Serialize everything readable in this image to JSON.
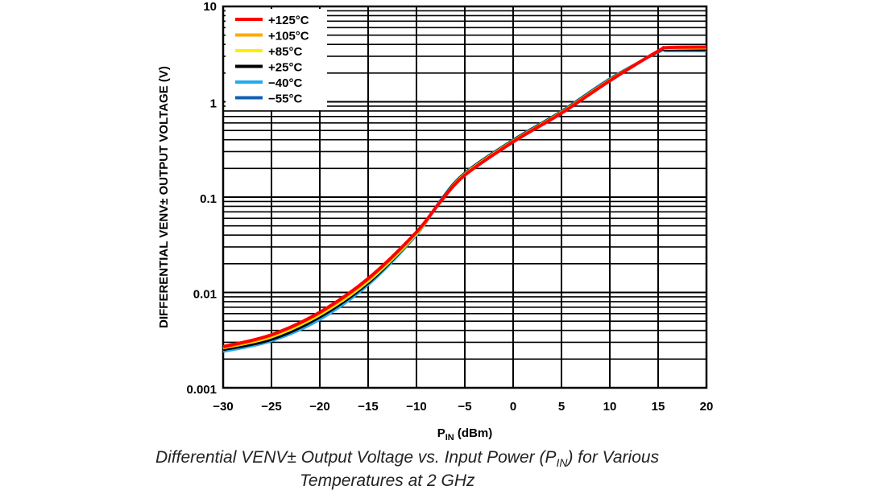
{
  "chart_data": {
    "type": "line",
    "title": "",
    "xlabel": "P",
    "xlabel_sub": "IN",
    "xlabel_unit": " (dBm)",
    "ylabel": "DIFFERENTIAL VENV± OUTPUT VOLTAGE (V)",
    "xlim": [
      -30,
      20
    ],
    "ylim": [
      0.001,
      10
    ],
    "yscale": "log",
    "grid": true,
    "legend_position": "top-left",
    "xticks": [
      "−30",
      "−25",
      "−20",
      "−15",
      "−10",
      "−5",
      "0",
      "5",
      "10",
      "15",
      "20"
    ],
    "yticks": [
      "0.001",
      "0.01",
      "0.1",
      "1",
      "10"
    ],
    "x": [
      -30,
      -25,
      -20,
      -15,
      -10,
      -7.5,
      -5,
      0,
      5,
      10,
      15,
      16,
      20
    ],
    "series": [
      {
        "name": "+125°C",
        "color": "#ff0000",
        "values": [
          0.0027,
          0.0036,
          0.0062,
          0.014,
          0.043,
          0.09,
          0.17,
          0.38,
          0.76,
          1.66,
          3.4,
          3.7,
          3.75
        ]
      },
      {
        "name": "+105°C",
        "color": "#ffaa00",
        "values": [
          0.0026,
          0.0035,
          0.006,
          0.0135,
          0.042,
          0.09,
          0.172,
          0.385,
          0.77,
          1.68,
          3.4,
          3.65,
          3.7
        ]
      },
      {
        "name": "+85°C",
        "color": "#ffee00",
        "values": [
          0.0026,
          0.0034,
          0.0058,
          0.013,
          0.041,
          0.091,
          0.175,
          0.39,
          0.78,
          1.7,
          3.4,
          3.6,
          3.65
        ]
      },
      {
        "name": "+25°C",
        "color": "#000000",
        "values": [
          0.0025,
          0.0032,
          0.0055,
          0.0125,
          0.041,
          0.092,
          0.178,
          0.395,
          0.79,
          1.72,
          3.35,
          3.5,
          3.5
        ]
      },
      {
        "name": "−40°C",
        "color": "#22aaee",
        "values": [
          0.0024,
          0.0031,
          0.0052,
          0.012,
          0.04,
          0.093,
          0.18,
          0.4,
          0.8,
          1.75,
          3.3,
          3.4,
          3.4
        ]
      },
      {
        "name": "−55°C",
        "color": "#1060b0",
        "values": [
          0.0024,
          0.0031,
          0.0052,
          0.012,
          0.04,
          0.093,
          0.18,
          0.4,
          0.8,
          1.75,
          3.3,
          3.4,
          3.4
        ]
      }
    ]
  },
  "caption": {
    "line1_pre": "Differential VENV± Output Voltage vs. Input Power (P",
    "line1_sub": "IN",
    "line1_post": ") for Various",
    "line2": "Temperatures at 2 GHz"
  }
}
